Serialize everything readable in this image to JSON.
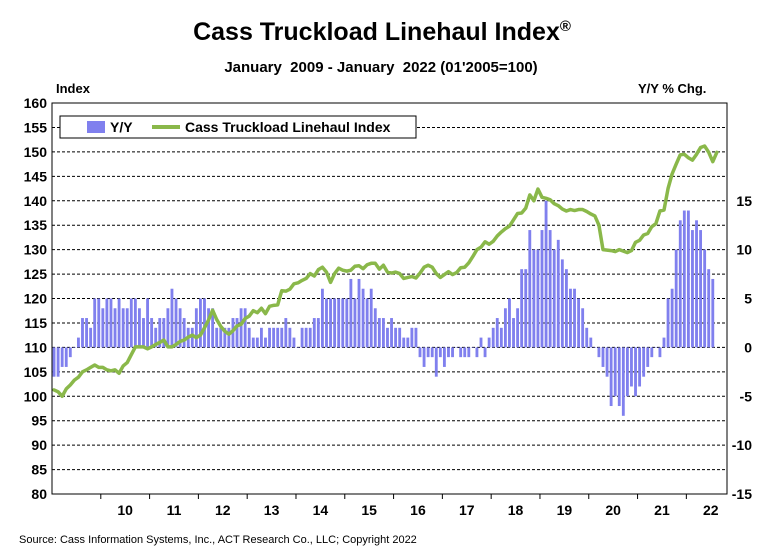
{
  "chart_data": {
    "type": "bar+line",
    "title": "Cass Truckload Linehaul Index",
    "title_mark": "®",
    "subtitle": "January  2009 - January  2022 (01'2005=100)",
    "left_axis_title": "Index",
    "right_axis_title": "Y/Y % Chg.",
    "source": "Source: Cass Information Systems, Inc., ACT Research Co., LLC; Copyright 2022",
    "grid": true,
    "legend_position": "top-left",
    "left_axis": {
      "min": 80,
      "max": 160,
      "step": 5,
      "ticks": [
        "80",
        "85",
        "90",
        "95",
        "100",
        "105",
        "110",
        "115",
        "120",
        "125",
        "130",
        "135",
        "140",
        "145",
        "150",
        "155",
        "160"
      ]
    },
    "right_axis": {
      "min": -15,
      "max": 25,
      "ticks": [
        "-15",
        "-10",
        "-5",
        "0",
        "5",
        "10",
        "15"
      ]
    },
    "x_axis": {
      "start": 2009.0,
      "end": 2022.833,
      "ticks": [
        "10",
        "11",
        "12",
        "13",
        "14",
        "15",
        "16",
        "17",
        "18",
        "19",
        "20",
        "21",
        "22"
      ]
    },
    "series": [
      {
        "name": "Y/Y",
        "kind": "bar",
        "axis": "right",
        "color": "#8080ee",
        "start": 2009.0,
        "step_months": 1,
        "values": [
          -3,
          -3,
          -2,
          -2,
          -1,
          0,
          1,
          3,
          3,
          2,
          5,
          5,
          4,
          5,
          5,
          4,
          5,
          4,
          4,
          5,
          5,
          4,
          3,
          5,
          3,
          2,
          3,
          3,
          4,
          6,
          5,
          4,
          3,
          2,
          2,
          4,
          5,
          5,
          4,
          4,
          2,
          2,
          2,
          2,
          3,
          3,
          4,
          4,
          2,
          1,
          1,
          2,
          1,
          2,
          2,
          2,
          2,
          3,
          2,
          1,
          0,
          2,
          2,
          2,
          3,
          3,
          6,
          5,
          5,
          5,
          5,
          5,
          5,
          7,
          5,
          7,
          6,
          5,
          6,
          4,
          3,
          3,
          2,
          3,
          2,
          2,
          1,
          1,
          2,
          2,
          -1,
          -2,
          -1,
          -1,
          -3,
          -1,
          -2,
          -1,
          -1,
          0,
          -1,
          -1,
          -1,
          0,
          -1,
          1,
          -1,
          1,
          2,
          3,
          2,
          4,
          5,
          3,
          4,
          8,
          8,
          12,
          10,
          10,
          12,
          15,
          12,
          10,
          11,
          9,
          8,
          6,
          6,
          5,
          4,
          2,
          1,
          0,
          -1,
          -2,
          -3,
          -6,
          -5,
          -6,
          -7,
          -5,
          -4,
          -5,
          -4,
          -3,
          -2,
          -1,
          0,
          -1,
          1,
          5,
          6,
          10,
          13,
          14,
          14,
          12,
          13,
          12,
          10,
          8,
          7
        ]
      },
      {
        "name": "Cass Truckload Linehaul Index",
        "kind": "line",
        "axis": "left",
        "color": "#8ab84a",
        "start": 2009.0,
        "step_months": 1,
        "values": [
          101.3,
          100.9,
          100.0,
          101.5,
          102.3,
          103.3,
          103.9,
          105.0,
          105.4,
          105.9,
          106.4,
          105.9,
          105.9,
          105.4,
          105.2,
          105.4,
          104.7,
          106.2,
          106.9,
          108.5,
          110.1,
          110.1,
          110.1,
          109.7,
          110.1,
          110.6,
          111.0,
          111.5,
          110.1,
          110.1,
          110.6,
          111.2,
          111.5,
          112.1,
          112.5,
          112.0,
          112.5,
          114.0,
          115.6,
          117.6,
          115.7,
          114.3,
          113.3,
          112.7,
          113.4,
          114.4,
          114.7,
          115.9,
          116.4,
          117.5,
          117.1,
          118.0,
          116.9,
          118.4,
          118.6,
          118.7,
          121.6,
          121.5,
          121.9,
          123.0,
          123.2,
          123.7,
          124.1,
          125.1,
          124.6,
          125.9,
          126.4,
          125.4,
          123.3,
          125.1,
          126.2,
          125.8,
          125.6,
          125.8,
          126.6,
          126.7,
          126.1,
          126.9,
          127.2,
          127.2,
          126.0,
          126.8,
          125.4,
          125.2,
          125.4,
          125.1,
          124.1,
          124.3,
          124.5,
          124.2,
          125.2,
          126.4,
          126.8,
          126.4,
          125.1,
          124.3,
          124.9,
          125.5,
          124.9,
          125.3,
          126.3,
          126.4,
          127.3,
          128.6,
          130.0,
          130.5,
          131.6,
          131.1,
          131.7,
          132.8,
          133.6,
          134.3,
          134.8,
          136.1,
          137.4,
          137.5,
          138.5,
          141.2,
          140.0,
          142.4,
          140.7,
          140.5,
          140.2,
          139.4,
          139.0,
          138.3,
          137.9,
          138.2,
          138.0,
          138.2,
          138.2,
          137.8,
          137.3,
          136.9,
          135.0,
          130.0,
          129.9,
          129.8,
          129.6,
          130.0,
          129.7,
          129.4,
          129.8,
          131.5,
          131.9,
          133.0,
          133.3,
          134.7,
          135.3,
          137.9,
          138.1,
          142.5,
          145.5,
          147.5,
          149.4,
          149.5,
          148.8,
          148.3,
          149.5,
          150.9,
          151.2,
          149.9,
          148.0,
          149.9
        ]
      }
    ]
  }
}
